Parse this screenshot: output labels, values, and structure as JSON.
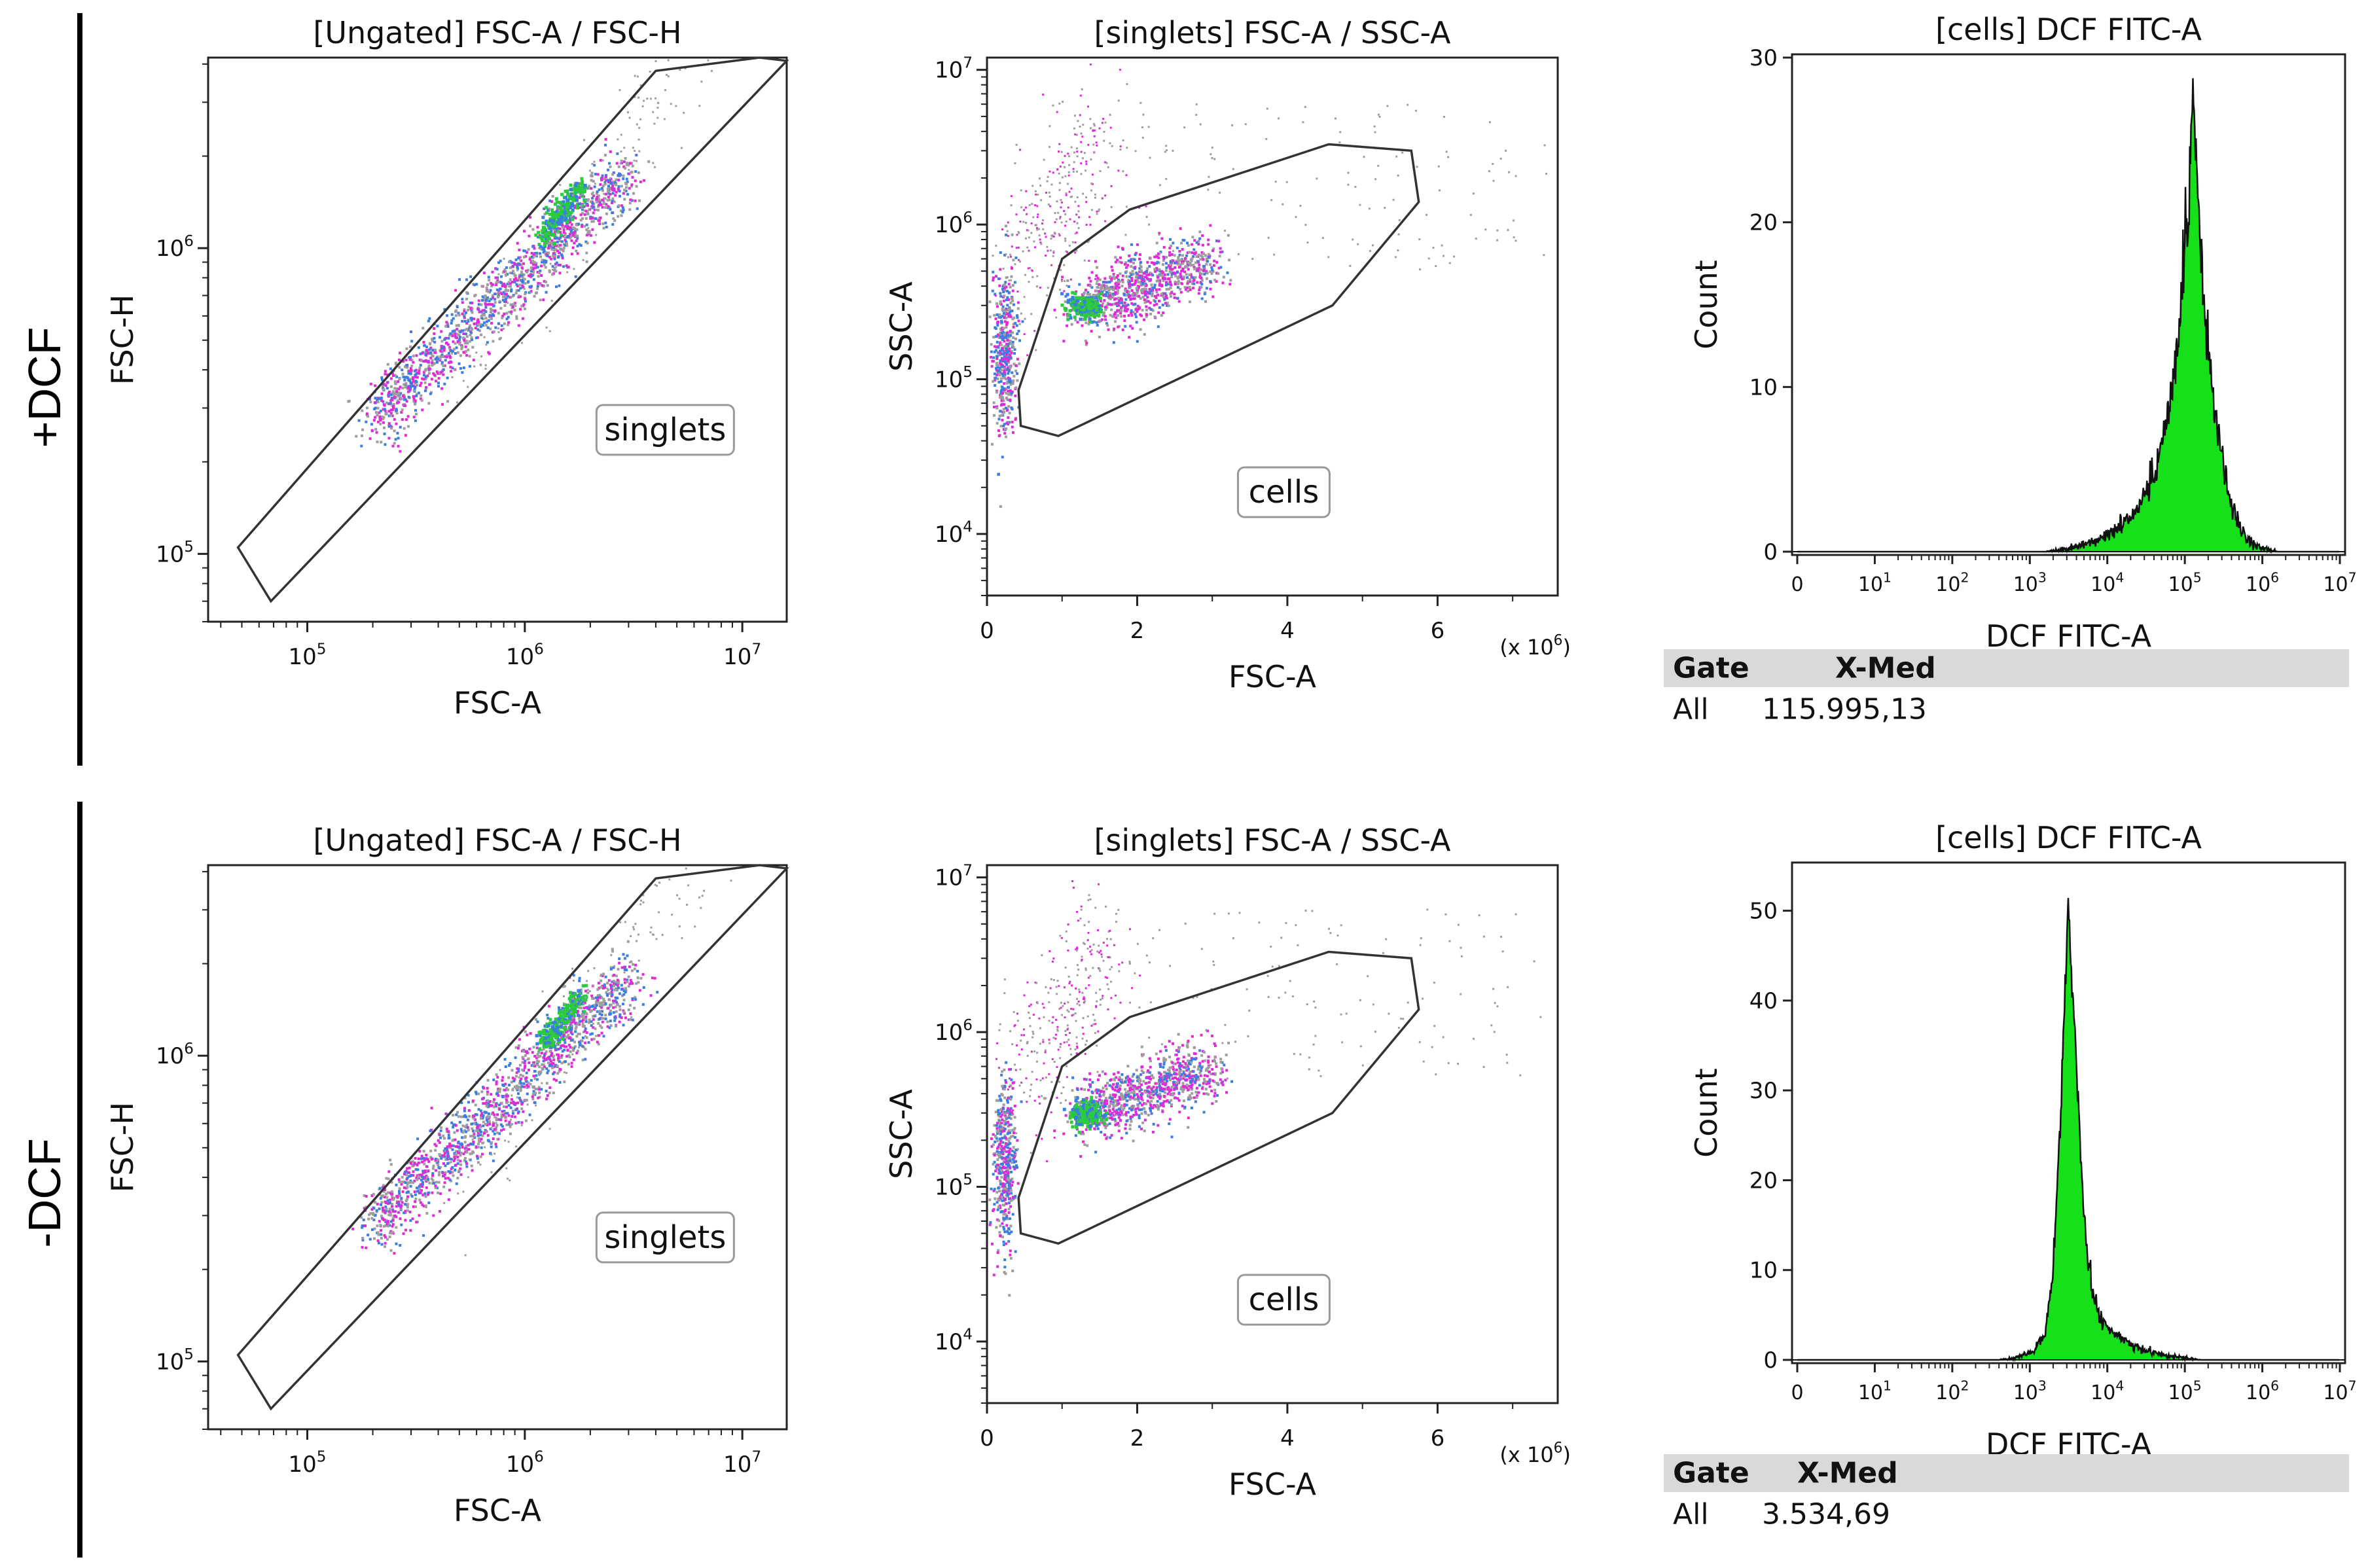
{
  "colors": {
    "histogram_fill": "#16e01a",
    "gate_line": "#333333",
    "rule": "#000000",
    "table_header_bg": "#d9d9d9",
    "event_grey": "#9e9e9e",
    "event_magenta": "#e02ad8",
    "event_blue": "#3a7ee0",
    "event_green": "#2ccb3e"
  },
  "rows": [
    {
      "label": "+DCF",
      "table": {
        "headers": [
          "Gate",
          "X-Med"
        ],
        "cells": [
          "All",
          "115.995,13"
        ]
      }
    },
    {
      "label": "-DCF",
      "table": {
        "headers": [
          "Gate",
          "X-Med"
        ],
        "cells": [
          "All",
          "3.534,69"
        ]
      }
    }
  ],
  "chart_data": [
    {
      "id": "pos-singlets",
      "row": "+DCF",
      "type": "scatter",
      "scale": "log-log",
      "title": "[Ungated] FSC-A / FSC-H",
      "xlabel": "FSC-A",
      "ylabel": "FSC-H",
      "xlim": [
        35000,
        16000000
      ],
      "ylim": [
        60000,
        4200000
      ],
      "x_ticks": [
        "10^5",
        "10^6",
        "10^7"
      ],
      "y_ticks": [
        "10^5",
        "10^6"
      ],
      "gate": {
        "name": "singlets",
        "vertices": [
          [
            48000,
            105000
          ],
          [
            68000,
            70000
          ],
          [
            16000000,
            4100000
          ],
          [
            12000000,
            4200000
          ],
          [
            4000000,
            3800000
          ]
        ]
      },
      "population": {
        "main_x": [
          200000,
          3000000
        ],
        "main_y": [
          280000,
          1800000
        ],
        "dense_x": [
          1200000,
          1800000
        ],
        "dense_y": [
          1100000,
          1600000
        ]
      }
    },
    {
      "id": "pos-cells",
      "row": "+DCF",
      "type": "scatter",
      "scale": "linear-log",
      "title": "[singlets] FSC-A / SSC-A",
      "xlabel": "FSC-A",
      "ylabel": "SSC-A",
      "x_multiplier": "(x 10^6)",
      "xlim": [
        0,
        7.6
      ],
      "ylim": [
        4000,
        12000000
      ],
      "x_ticks": [
        "0",
        "2",
        "4",
        "6"
      ],
      "y_ticks": [
        "10^4",
        "10^5",
        "10^6",
        "10^7"
      ],
      "gate": {
        "name": "cells",
        "vertices": [
          [
            0.45,
            50000
          ],
          [
            0.95,
            43000
          ],
          [
            4.6,
            300000
          ],
          [
            5.75,
            1400000
          ],
          [
            5.65,
            3000000
          ],
          [
            4.55,
            3300000
          ],
          [
            1.9,
            1250000
          ],
          [
            1.0,
            600000
          ],
          [
            0.42,
            85000
          ]
        ]
      },
      "population": {
        "clusters": [
          [
            1.3,
            300000
          ],
          [
            0.2,
            150000
          ]
        ],
        "tail_to": [
          2.8,
          600000
        ]
      }
    },
    {
      "id": "pos-histogram",
      "row": "+DCF",
      "type": "area",
      "scale": "log-x",
      "title": "[cells] DCF FITC-A",
      "xlabel": "DCF FITC-A",
      "ylabel": "Count",
      "xlim_log10": [
        0,
        7
      ],
      "ylim": [
        0,
        30
      ],
      "y_ticks": [
        0,
        10,
        20,
        30
      ],
      "x_ticks": [
        "0",
        "10^1",
        "10^2",
        "10^3",
        "10^4",
        "10^5",
        "10^6",
        "10^7"
      ],
      "peak_x": 115995.13,
      "peak_count": 29,
      "x_median": "115.995,13",
      "log10_x": [
        3.2,
        3.4,
        3.6,
        3.8,
        4.0,
        4.2,
        4.4,
        4.6,
        4.8,
        4.9,
        5.0,
        5.05,
        5.1,
        5.15,
        5.2,
        5.3,
        5.4,
        5.5,
        5.6,
        5.8,
        6.0,
        6.2
      ],
      "counts": [
        0,
        0.1,
        0.3,
        0.6,
        1.0,
        1.6,
        2.6,
        4.5,
        8.8,
        12.6,
        18.6,
        21.0,
        29.0,
        23.3,
        19.0,
        12.0,
        8.3,
        5.0,
        2.7,
        0.8,
        0.2,
        0
      ]
    },
    {
      "id": "neg-singlets",
      "row": "-DCF",
      "type": "scatter",
      "scale": "log-log",
      "title": "[Ungated] FSC-A / FSC-H",
      "xlabel": "FSC-A",
      "ylabel": "FSC-H",
      "xlim": [
        35000,
        16000000
      ],
      "ylim": [
        60000,
        4200000
      ],
      "x_ticks": [
        "10^5",
        "10^6",
        "10^7"
      ],
      "y_ticks": [
        "10^5",
        "10^6"
      ],
      "gate": {
        "name": "singlets",
        "vertices": [
          [
            48000,
            105000
          ],
          [
            68000,
            70000
          ],
          [
            16000000,
            4100000
          ],
          [
            12000000,
            4200000
          ],
          [
            4000000,
            3800000
          ]
        ]
      },
      "population": {
        "main_x": [
          200000,
          3000000
        ],
        "main_y": [
          280000,
          1800000
        ],
        "dense_x": [
          1200000,
          1800000
        ],
        "dense_y": [
          1100000,
          1600000
        ]
      }
    },
    {
      "id": "neg-cells",
      "row": "-DCF",
      "type": "scatter",
      "scale": "linear-log",
      "title": "[singlets] FSC-A / SSC-A",
      "xlabel": "FSC-A",
      "ylabel": "SSC-A",
      "x_multiplier": "(x 10^6)",
      "xlim": [
        0,
        7.6
      ],
      "ylim": [
        4000,
        12000000
      ],
      "x_ticks": [
        "0",
        "2",
        "4",
        "6"
      ],
      "y_ticks": [
        "10^4",
        "10^5",
        "10^6",
        "10^7"
      ],
      "gate": {
        "name": "cells",
        "vertices": [
          [
            0.45,
            50000
          ],
          [
            0.95,
            43000
          ],
          [
            4.6,
            300000
          ],
          [
            5.75,
            1400000
          ],
          [
            5.65,
            3000000
          ],
          [
            4.55,
            3300000
          ],
          [
            1.9,
            1250000
          ],
          [
            1.0,
            600000
          ],
          [
            0.42,
            85000
          ]
        ]
      },
      "population": {
        "clusters": [
          [
            1.3,
            300000
          ],
          [
            0.2,
            150000
          ]
        ],
        "tail_to": [
          2.8,
          600000
        ]
      }
    },
    {
      "id": "neg-histogram",
      "row": "-DCF",
      "type": "area",
      "scale": "log-x",
      "title": "[cells] DCF FITC-A",
      "xlabel": "DCF FITC-A",
      "ylabel": "Count",
      "xlim_log10": [
        0,
        7
      ],
      "ylim": [
        0,
        55
      ],
      "y_ticks": [
        0,
        10,
        20,
        30,
        40,
        50
      ],
      "x_ticks": [
        "0",
        "10^1",
        "10^2",
        "10^3",
        "10^4",
        "10^5",
        "10^6",
        "10^7"
      ],
      "peak_x": 3534.69,
      "peak_count": 52,
      "x_median": "3.534,69",
      "log10_x": [
        2.6,
        2.8,
        3.0,
        3.1,
        3.2,
        3.3,
        3.4,
        3.45,
        3.5,
        3.55,
        3.6,
        3.7,
        3.8,
        3.9,
        4.0,
        4.2,
        4.4,
        4.6,
        4.8,
        5.0,
        5.2
      ],
      "counts": [
        0,
        0.2,
        0.8,
        1.5,
        3.0,
        10.0,
        28.0,
        40.0,
        51.0,
        42.0,
        33.0,
        16.0,
        8.0,
        5.0,
        3.5,
        2.2,
        1.3,
        0.8,
        0.4,
        0.2,
        0
      ]
    }
  ]
}
